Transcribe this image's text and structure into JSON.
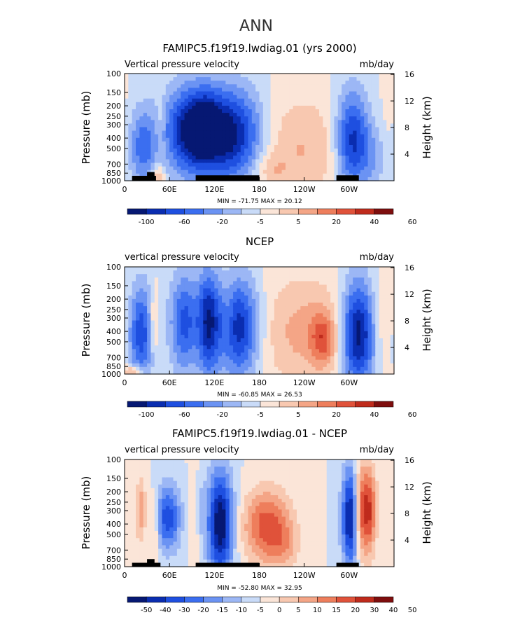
{
  "page_title": "ANN",
  "chart_data": [
    {
      "type": "heatmap",
      "title": "FAMIPC5.f19f19.lwdiag.01 (yrs 2000)",
      "left_string": "Vertical pressure velocity",
      "right_string": "mb/day",
      "ylabel": "Pressure (mb)",
      "ylabel_right": "Height (km)",
      "x_ticks": [
        "0",
        "60E",
        "120E",
        "180",
        "120W",
        "60W"
      ],
      "x_tick_values": [
        0,
        60,
        120,
        180,
        240,
        300
      ],
      "xlim": [
        0,
        360
      ],
      "y_ticks": [
        "100",
        "150",
        "200",
        "250",
        "300",
        "400",
        "500",
        "700",
        "850",
        "1000"
      ],
      "y_tick_values": [
        100,
        150,
        200,
        250,
        300,
        400,
        500,
        700,
        850,
        1000
      ],
      "ylim": [
        1000,
        100
      ],
      "y_scale": "log",
      "height_ticks": [
        "4",
        "8",
        "12",
        "16"
      ],
      "height_tick_values": [
        4,
        8,
        12,
        16
      ],
      "stats": "MIN = -71.75   MAX =  20.12",
      "colorbar_labels": [
        "-100",
        "-60",
        "-20",
        "-5",
        "5",
        "20",
        "40",
        "60"
      ],
      "palette": [
        "#061873",
        "#0a2db0",
        "#1e4fe0",
        "#3b6ef0",
        "#6b93f3",
        "#9cb7f5",
        "#c9dbf8",
        "#fbe5d8",
        "#f8c8b0",
        "#f4a586",
        "#ee7e5c",
        "#e0523a",
        "#bf2b1c",
        "#7e0e0e"
      ],
      "fields": [
        {
          "lon": 24,
          "p": 480,
          "dlon": 14,
          "dp": 0.6,
          "v": -30
        },
        {
          "lon": 92,
          "p": 340,
          "dlon": 26,
          "dp": 0.65,
          "v": -60
        },
        {
          "lon": 145,
          "p": 380,
          "dlon": 30,
          "dp": 0.7,
          "v": -55
        },
        {
          "lon": 110,
          "p": 270,
          "dlon": 10,
          "dp": 0.4,
          "v": -10
        },
        {
          "lon": 228,
          "p": 500,
          "dlon": 55,
          "dp": 0.8,
          "v": 18
        },
        {
          "lon": 196,
          "p": 800,
          "dlon": 14,
          "dp": 0.25,
          "v": 10
        },
        {
          "lon": 304,
          "p": 420,
          "dlon": 16,
          "dp": 0.75,
          "v": -50
        },
        {
          "lon": 334,
          "p": 600,
          "dlon": 14,
          "dp": 0.5,
          "v": -15
        },
        {
          "lon": 48,
          "p": 330,
          "dlon": 4,
          "dp": 0.5,
          "v": 10
        },
        {
          "lon": 355,
          "p": 500,
          "dlon": 10,
          "dp": 0.9,
          "v": 5
        },
        {
          "lon": 45,
          "p": 900,
          "dlon": 6,
          "dp": 0.15,
          "v": 22
        }
      ],
      "land_blocks": [
        {
          "lon": [
            10,
            42
          ],
          "p": [
            900,
            1000
          ]
        },
        {
          "lon": [
            30,
            40
          ],
          "p": [
            830,
            1000
          ]
        },
        {
          "lon": [
            95,
            180
          ],
          "p": [
            890,
            1000
          ]
        },
        {
          "lon": [
            283,
            313
          ],
          "p": [
            890,
            1000
          ]
        }
      ]
    },
    {
      "type": "heatmap",
      "title": "NCEP",
      "left_string": "vertical pressure velocity",
      "right_string": "mb/day",
      "ylabel": "Pressure (mb)",
      "ylabel_right": "Height (km)",
      "x_ticks": [
        "0",
        "60E",
        "120E",
        "180",
        "120W",
        "60W"
      ],
      "x_tick_values": [
        0,
        60,
        120,
        180,
        240,
        300
      ],
      "xlim": [
        0,
        360
      ],
      "y_ticks": [
        "100",
        "150",
        "200",
        "250",
        "300",
        "400",
        "500",
        "700",
        "850",
        "1000"
      ],
      "y_tick_values": [
        100,
        150,
        200,
        250,
        300,
        400,
        500,
        700,
        850,
        1000
      ],
      "ylim": [
        1000,
        100
      ],
      "y_scale": "log",
      "height_ticks": [
        "4",
        "8",
        "12",
        "16"
      ],
      "height_tick_values": [
        4,
        8,
        12,
        16
      ],
      "stats": "MIN = -60.85   MAX =  26.53",
      "colorbar_labels": [
        "-100",
        "-60",
        "-20",
        "-5",
        "5",
        "20",
        "40",
        "60"
      ],
      "palette": [
        "#061873",
        "#0a2db0",
        "#1e4fe0",
        "#3b6ef0",
        "#6b93f3",
        "#9cb7f5",
        "#c9dbf8",
        "#fbe5d8",
        "#f8c8b0",
        "#f4a586",
        "#ee7e5c",
        "#e0523a",
        "#bf2b1c",
        "#7e0e0e"
      ],
      "fields": [
        {
          "lon": 22,
          "p": 420,
          "dlon": 12,
          "dp": 0.75,
          "v": -30
        },
        {
          "lon": 40,
          "p": 320,
          "dlon": 5,
          "dp": 0.5,
          "v": 14
        },
        {
          "lon": 80,
          "p": 330,
          "dlon": 14,
          "dp": 0.75,
          "v": -28
        },
        {
          "lon": 112,
          "p": 330,
          "dlon": 10,
          "dp": 0.8,
          "v": -35
        },
        {
          "lon": 152,
          "p": 370,
          "dlon": 20,
          "dp": 0.75,
          "v": -38
        },
        {
          "lon": 140,
          "p": 300,
          "dlon": 6,
          "dp": 0.6,
          "v": 6
        },
        {
          "lon": 240,
          "p": 400,
          "dlon": 45,
          "dp": 0.85,
          "v": 15
        },
        {
          "lon": 265,
          "p": 470,
          "dlon": 12,
          "dp": 0.4,
          "v": 20
        },
        {
          "lon": 312,
          "p": 420,
          "dlon": 16,
          "dp": 0.8,
          "v": -45
        },
        {
          "lon": 345,
          "p": 300,
          "dlon": 12,
          "dp": 0.7,
          "v": 8
        },
        {
          "lon": 12,
          "p": 950,
          "dlon": 10,
          "dp": 0.1,
          "v": 20
        }
      ],
      "land_blocks": []
    },
    {
      "type": "heatmap",
      "title": "FAMIPC5.f19f19.lwdiag.01 - NCEP",
      "left_string": "vertical pressure velocity",
      "right_string": "mb/day",
      "ylabel": "Pressure (mb)",
      "ylabel_right": "Height (km)",
      "x_ticks": [
        "0",
        "60E",
        "120E",
        "180",
        "120W",
        "60W"
      ],
      "x_tick_values": [
        0,
        60,
        120,
        180,
        240,
        300
      ],
      "xlim": [
        0,
        360
      ],
      "y_ticks": [
        "100",
        "150",
        "200",
        "250",
        "300",
        "400",
        "500",
        "700",
        "850",
        "1000"
      ],
      "y_tick_values": [
        100,
        150,
        200,
        250,
        300,
        400,
        500,
        700,
        850,
        1000
      ],
      "ylim": [
        1000,
        100
      ],
      "y_scale": "log",
      "height_ticks": [
        "4",
        "8",
        "12",
        "16"
      ],
      "height_tick_values": [
        4,
        8,
        12,
        16
      ],
      "stats": "MIN = -52.80   MAX =  32.95",
      "colorbar_labels": [
        "-50",
        "-40",
        "-30",
        "-20",
        "-15",
        "-10",
        "-5",
        "0",
        "5",
        "10",
        "15",
        "20",
        "30",
        "40",
        "50"
      ],
      "palette": [
        "#061873",
        "#0a2db0",
        "#1e4fe0",
        "#3b6ef0",
        "#6b93f3",
        "#9cb7f5",
        "#c9dbf8",
        "#fbe5d8",
        "#f8c8b0",
        "#f4a586",
        "#ee7e5c",
        "#e0523a",
        "#bf2b1c",
        "#7e0e0e"
      ],
      "fields": [
        {
          "lon": 22,
          "p": 300,
          "dlon": 5,
          "dp": 0.5,
          "v": 18
        },
        {
          "lon": 58,
          "p": 350,
          "dlon": 12,
          "dp": 0.5,
          "v": -30
        },
        {
          "lon": 128,
          "p": 400,
          "dlon": 12,
          "dp": 0.8,
          "v": -45
        },
        {
          "lon": 190,
          "p": 420,
          "dlon": 22,
          "dp": 0.55,
          "v": 30
        },
        {
          "lon": 214,
          "p": 650,
          "dlon": 14,
          "dp": 0.4,
          "v": 10
        },
        {
          "lon": 302,
          "p": 350,
          "dlon": 8,
          "dp": 0.75,
          "v": -45
        },
        {
          "lon": 318,
          "p": 300,
          "dlon": 9,
          "dp": 0.7,
          "v": 35
        },
        {
          "lon": 330,
          "p": 300,
          "dlon": 6,
          "dp": 0.6,
          "v": 15
        },
        {
          "lon": 95,
          "p": 400,
          "dlon": 6,
          "dp": 0.8,
          "v": 8
        },
        {
          "lon": 100,
          "p": 300,
          "dlon": 5,
          "dp": 0.5,
          "v": -10
        },
        {
          "lon": 40,
          "p": 420,
          "dlon": 4,
          "dp": 0.5,
          "v": 14
        }
      ],
      "land_blocks": [
        {
          "lon": [
            10,
            48
          ],
          "p": [
            920,
            1000
          ]
        },
        {
          "lon": [
            30,
            40
          ],
          "p": [
            850,
            1000
          ]
        },
        {
          "lon": [
            95,
            180
          ],
          "p": [
            920,
            1000
          ]
        },
        {
          "lon": [
            283,
            313
          ],
          "p": [
            920,
            1000
          ]
        }
      ]
    }
  ]
}
